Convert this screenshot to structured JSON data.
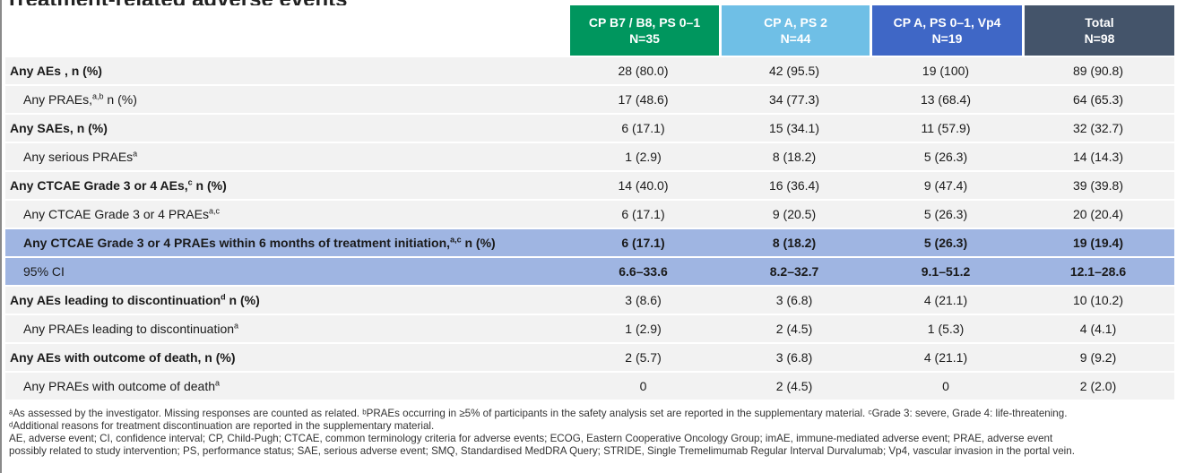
{
  "title_fragment": "Treatment-related adverse events",
  "header": {
    "columns": [
      {
        "line1": "CP B7 / B8, PS 0–1",
        "line2": "N=35",
        "color": "#00965e"
      },
      {
        "line1": "CP A, PS 2",
        "line2": "N=44",
        "color": "#6fbfe6"
      },
      {
        "line1": "CP A, PS 0–1, Vp4",
        "line2": "N=19",
        "color": "#3f67c6"
      },
      {
        "line1": "Total",
        "line2": "N=98",
        "color": "#44546a"
      }
    ]
  },
  "rows": [
    {
      "label": "Any AEs , n (%)",
      "sup": "",
      "suffix": "",
      "values": [
        "28 (80.0)",
        "42 (95.5)",
        "19 (100)",
        "89 (90.8)"
      ]
    },
    {
      "label": "Any PRAEs,",
      "sup": "a,b",
      "suffix": " n (%)",
      "values": [
        "17 (48.6)",
        "34 (77.3)",
        "13 (68.4)",
        "64 (65.3)"
      ]
    },
    {
      "label": "Any SAEs, n (%)",
      "sup": "",
      "suffix": "",
      "values": [
        "6 (17.1)",
        "15 (34.1)",
        "11 (57.9)",
        "32 (32.7)"
      ]
    },
    {
      "label": "Any serious PRAEs",
      "sup": "a",
      "suffix": "",
      "values": [
        "1 (2.9)",
        "8 (18.2)",
        "5 (26.3)",
        "14 (14.3)"
      ]
    },
    {
      "label": "Any CTCAE Grade 3 or 4 AEs,",
      "sup": "c",
      "suffix": " n (%)",
      "values": [
        "14 (40.0)",
        "16 (36.4)",
        "9 (47.4)",
        "39 (39.8)"
      ]
    },
    {
      "label": "Any CTCAE Grade 3 or 4 PRAEs",
      "sup": "a,c",
      "suffix": "",
      "values": [
        "6 (17.1)",
        "9 (20.5)",
        "5 (26.3)",
        "20 (20.4)"
      ]
    },
    {
      "label": "Any CTCAE Grade 3 or 4 PRAEs within 6 months of treatment initiation,",
      "sup": "a,c",
      "suffix": " n (%)",
      "values": [
        "6 (17.1)",
        "8 (18.2)",
        "5 (26.3)",
        "19 (19.4)"
      ]
    },
    {
      "label": "95% CI",
      "sup": "",
      "suffix": "",
      "values": [
        "6.6–33.6",
        "8.2–32.7",
        "9.1–51.2",
        "12.1–28.6"
      ]
    },
    {
      "label": "Any AEs leading to discontinuation",
      "sup": "d",
      "suffix": " n (%)",
      "values": [
        "3 (8.6)",
        "3 (6.8)",
        "4 (21.1)",
        "10 (10.2)"
      ]
    },
    {
      "label": "Any PRAEs leading to discontinuation",
      "sup": "a",
      "suffix": "",
      "values": [
        "1 (2.9)",
        "2 (4.5)",
        "1 (5.3)",
        "4 (4.1)"
      ]
    },
    {
      "label": "Any AEs with outcome of death, n (%)",
      "sup": "",
      "suffix": "",
      "values": [
        "2 (5.7)",
        "3 (6.8)",
        "4 (21.1)",
        "9 (9.2)"
      ]
    },
    {
      "label": "Any PRAEs with outcome of death",
      "sup": "a",
      "suffix": "",
      "values": [
        "0",
        "2 (4.5)",
        "0",
        "2 (2.0)"
      ]
    }
  ],
  "footnotes": {
    "line1": "ᵃAs assessed by the investigator. Missing responses are counted as related. ᵇPRAEs occurring in ≥5% of participants in the safety analysis set are reported in the supplementary material. ᶜGrade 3: severe, Grade 4: life-threatening.",
    "line2": "ᵈAdditional reasons for treatment discontinuation are reported in the supplementary material.",
    "abbrev1": "AE, adverse event; CI, confidence interval; CP, Child-Pugh; CTCAE, common terminology criteria for adverse events; ECOG, Eastern Cooperative Oncology Group; imAE, immune-mediated adverse event; PRAE, adverse event",
    "abbrev2": "possibly related to study intervention; PS, performance status; SAE, serious adverse event; SMQ, Standardised MedDRA Query; STRIDE, Single Tremelimumab Regular Interval Durvalumab; Vp4, vascular invasion in the portal vein."
  }
}
